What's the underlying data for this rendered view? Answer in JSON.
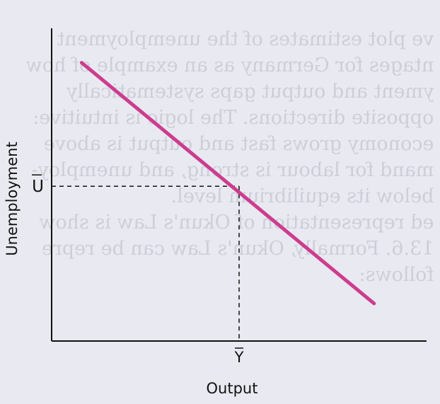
{
  "diagram": {
    "type": "line",
    "title": "",
    "xlabel": "Output",
    "ylabel": "Unemployment",
    "x_marker_label": "Y",
    "y_marker_label": "U",
    "marker_overbar": true,
    "xlim": [
      0,
      10
    ],
    "ylim": [
      0,
      10
    ],
    "line": {
      "start": [
        0.8,
        8.9
      ],
      "end": [
        8.6,
        1.2
      ]
    },
    "equilibrium": {
      "x": 5.0,
      "y": 4.95
    },
    "line_color": "#cc3d8e",
    "axis_color": "#111111",
    "background_color": "#e9e9f1"
  }
}
